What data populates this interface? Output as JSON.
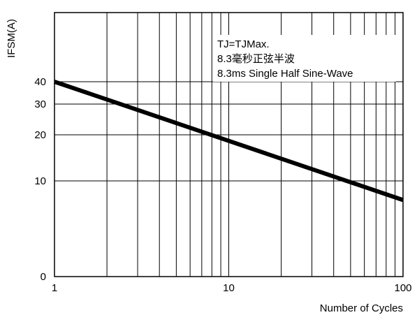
{
  "chart_data": {
    "type": "line",
    "title": "",
    "xlabel": "Number of Cycles",
    "ylabel": "IFSM(A)",
    "x_scale": "log",
    "xlim": [
      1,
      100
    ],
    "x_ticks": [
      1,
      10,
      100
    ],
    "x_tick_labels": [
      "1",
      "10",
      "100"
    ],
    "y_ticks": [
      0,
      10,
      20,
      30,
      40
    ],
    "y_tick_labels": [
      "0",
      "10",
      "20",
      "30",
      "40"
    ],
    "grid": true,
    "annotations": [
      "TJ=TJMax.",
      "8.3毫秒正弦半波",
      "8.3ms Single Half Sine-Wave"
    ],
    "series": [
      {
        "x": [
          1,
          100
        ],
        "y": [
          40,
          8
        ]
      }
    ]
  }
}
